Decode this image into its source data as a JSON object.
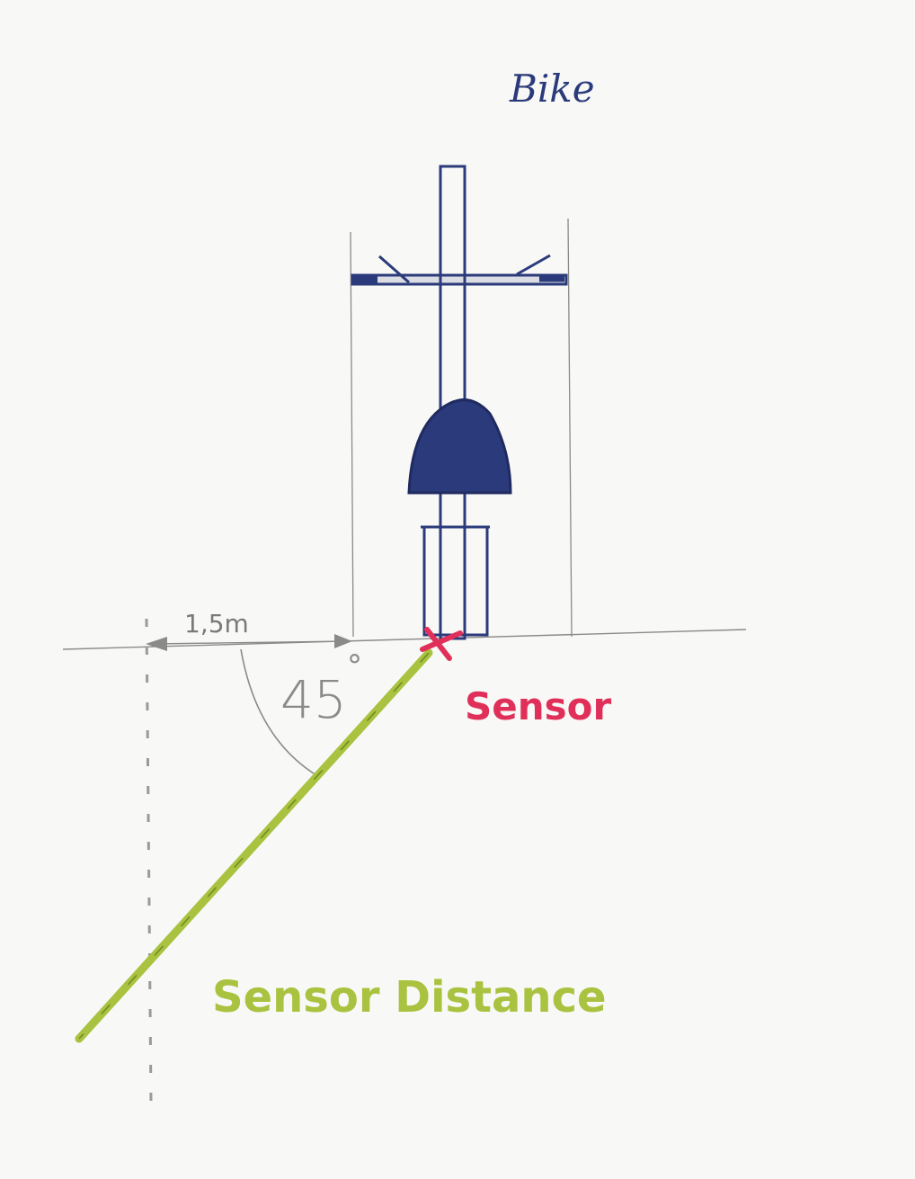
{
  "labels": {
    "bike": "Bike",
    "offset_distance": "1,5m",
    "angle_value": "45",
    "angle_unit": "°",
    "sensor": "Sensor",
    "sensor_distance": "Sensor Distance"
  },
  "colors": {
    "paper": "#f8f8f6",
    "pencil": "#8a8a8a",
    "bike_ink": "#2b3a7a",
    "sensor_red": "#e0305a",
    "beam_green": "#a9c23f",
    "dashed_gray": "#9a9a9a"
  },
  "values": {
    "offset_meters": 1.5,
    "beam_angle_degrees": 45
  }
}
